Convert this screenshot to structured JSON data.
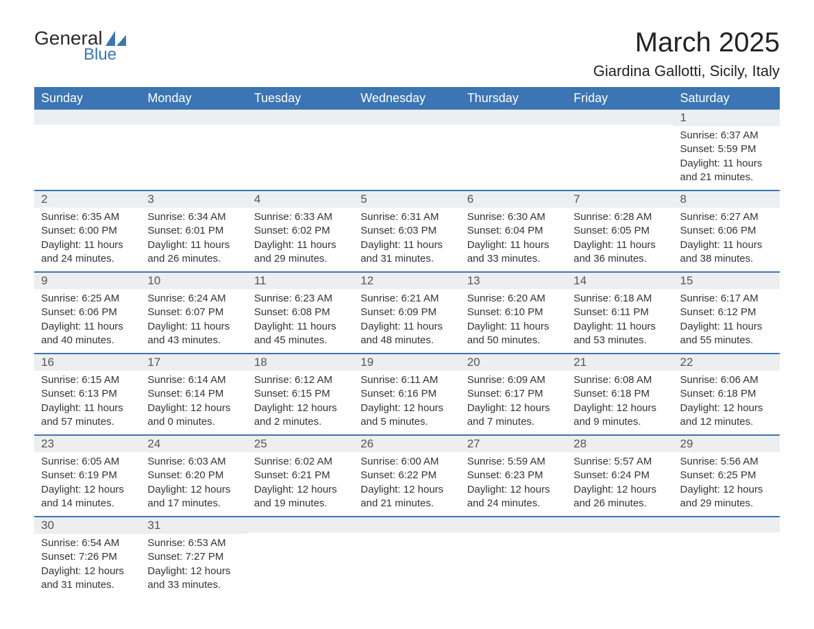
{
  "logo": {
    "text_general": "General",
    "text_blue": "Blue",
    "accent_color": "#3b75b3"
  },
  "title": "March 2025",
  "location": "Giardina Gallotti, Sicily, Italy",
  "colors": {
    "header_bg": "#3b75b3",
    "header_text": "#ffffff",
    "daynum_bg": "#eceeef",
    "daynum_text": "#555555",
    "body_text": "#333333",
    "row_border": "#3b75b3",
    "page_bg": "#ffffff"
  },
  "typography": {
    "title_fontsize": 40,
    "location_fontsize": 22,
    "weekday_fontsize": 18,
    "daynum_fontsize": 17,
    "body_fontsize": 15
  },
  "weekdays": [
    "Sunday",
    "Monday",
    "Tuesday",
    "Wednesday",
    "Thursday",
    "Friday",
    "Saturday"
  ],
  "labels": {
    "sunrise": "Sunrise:",
    "sunset": "Sunset:",
    "daylight": "Daylight:"
  },
  "weeks": [
    [
      null,
      null,
      null,
      null,
      null,
      null,
      {
        "d": "1",
        "sr": "6:37 AM",
        "ss": "5:59 PM",
        "dl": "11 hours and 21 minutes."
      }
    ],
    [
      {
        "d": "2",
        "sr": "6:35 AM",
        "ss": "6:00 PM",
        "dl": "11 hours and 24 minutes."
      },
      {
        "d": "3",
        "sr": "6:34 AM",
        "ss": "6:01 PM",
        "dl": "11 hours and 26 minutes."
      },
      {
        "d": "4",
        "sr": "6:33 AM",
        "ss": "6:02 PM",
        "dl": "11 hours and 29 minutes."
      },
      {
        "d": "5",
        "sr": "6:31 AM",
        "ss": "6:03 PM",
        "dl": "11 hours and 31 minutes."
      },
      {
        "d": "6",
        "sr": "6:30 AM",
        "ss": "6:04 PM",
        "dl": "11 hours and 33 minutes."
      },
      {
        "d": "7",
        "sr": "6:28 AM",
        "ss": "6:05 PM",
        "dl": "11 hours and 36 minutes."
      },
      {
        "d": "8",
        "sr": "6:27 AM",
        "ss": "6:06 PM",
        "dl": "11 hours and 38 minutes."
      }
    ],
    [
      {
        "d": "9",
        "sr": "6:25 AM",
        "ss": "6:06 PM",
        "dl": "11 hours and 40 minutes."
      },
      {
        "d": "10",
        "sr": "6:24 AM",
        "ss": "6:07 PM",
        "dl": "11 hours and 43 minutes."
      },
      {
        "d": "11",
        "sr": "6:23 AM",
        "ss": "6:08 PM",
        "dl": "11 hours and 45 minutes."
      },
      {
        "d": "12",
        "sr": "6:21 AM",
        "ss": "6:09 PM",
        "dl": "11 hours and 48 minutes."
      },
      {
        "d": "13",
        "sr": "6:20 AM",
        "ss": "6:10 PM",
        "dl": "11 hours and 50 minutes."
      },
      {
        "d": "14",
        "sr": "6:18 AM",
        "ss": "6:11 PM",
        "dl": "11 hours and 53 minutes."
      },
      {
        "d": "15",
        "sr": "6:17 AM",
        "ss": "6:12 PM",
        "dl": "11 hours and 55 minutes."
      }
    ],
    [
      {
        "d": "16",
        "sr": "6:15 AM",
        "ss": "6:13 PM",
        "dl": "11 hours and 57 minutes."
      },
      {
        "d": "17",
        "sr": "6:14 AM",
        "ss": "6:14 PM",
        "dl": "12 hours and 0 minutes."
      },
      {
        "d": "18",
        "sr": "6:12 AM",
        "ss": "6:15 PM",
        "dl": "12 hours and 2 minutes."
      },
      {
        "d": "19",
        "sr": "6:11 AM",
        "ss": "6:16 PM",
        "dl": "12 hours and 5 minutes."
      },
      {
        "d": "20",
        "sr": "6:09 AM",
        "ss": "6:17 PM",
        "dl": "12 hours and 7 minutes."
      },
      {
        "d": "21",
        "sr": "6:08 AM",
        "ss": "6:18 PM",
        "dl": "12 hours and 9 minutes."
      },
      {
        "d": "22",
        "sr": "6:06 AM",
        "ss": "6:18 PM",
        "dl": "12 hours and 12 minutes."
      }
    ],
    [
      {
        "d": "23",
        "sr": "6:05 AM",
        "ss": "6:19 PM",
        "dl": "12 hours and 14 minutes."
      },
      {
        "d": "24",
        "sr": "6:03 AM",
        "ss": "6:20 PM",
        "dl": "12 hours and 17 minutes."
      },
      {
        "d": "25",
        "sr": "6:02 AM",
        "ss": "6:21 PM",
        "dl": "12 hours and 19 minutes."
      },
      {
        "d": "26",
        "sr": "6:00 AM",
        "ss": "6:22 PM",
        "dl": "12 hours and 21 minutes."
      },
      {
        "d": "27",
        "sr": "5:59 AM",
        "ss": "6:23 PM",
        "dl": "12 hours and 24 minutes."
      },
      {
        "d": "28",
        "sr": "5:57 AM",
        "ss": "6:24 PM",
        "dl": "12 hours and 26 minutes."
      },
      {
        "d": "29",
        "sr": "5:56 AM",
        "ss": "6:25 PM",
        "dl": "12 hours and 29 minutes."
      }
    ],
    [
      {
        "d": "30",
        "sr": "6:54 AM",
        "ss": "7:26 PM",
        "dl": "12 hours and 31 minutes."
      },
      {
        "d": "31",
        "sr": "6:53 AM",
        "ss": "7:27 PM",
        "dl": "12 hours and 33 minutes."
      },
      null,
      null,
      null,
      null,
      null
    ]
  ]
}
